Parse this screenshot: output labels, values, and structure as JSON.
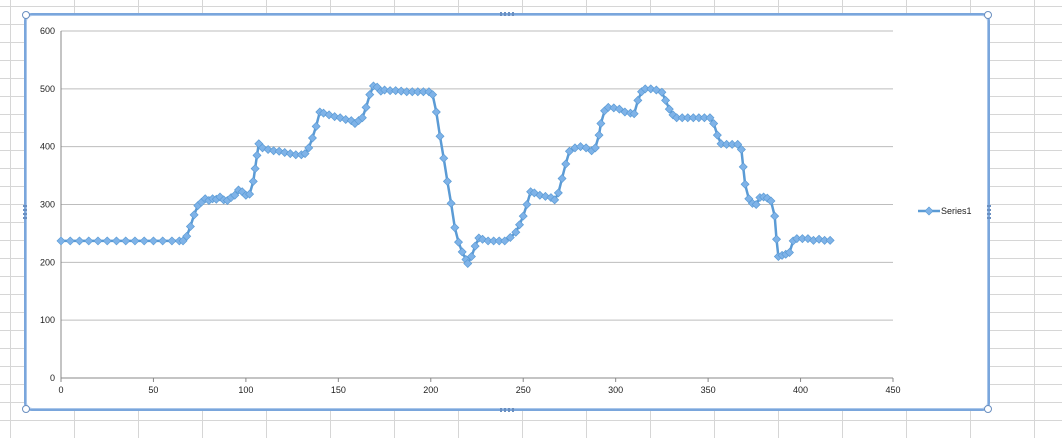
{
  "chart_data": {
    "type": "line",
    "title": "",
    "xlabel": "",
    "ylabel": "",
    "xlim": [
      0,
      450
    ],
    "ylim": [
      0,
      600
    ],
    "x_ticks": [
      "0",
      "50",
      "100",
      "150",
      "200",
      "250",
      "300",
      "350",
      "400",
      "450"
    ],
    "y_ticks": [
      "0",
      "100",
      "200",
      "300",
      "400",
      "500",
      "600"
    ],
    "grid": "horizontal major gridlines",
    "legend_position": "right",
    "colors": {
      "series": "#5b9bd5",
      "marker": "#7fb3e8",
      "grid": "#bdbdbd"
    },
    "marker": "diamond",
    "series": [
      {
        "name": "Series1",
        "points": [
          [
            0,
            237
          ],
          [
            5,
            237
          ],
          [
            10,
            237
          ],
          [
            15,
            237
          ],
          [
            20,
            237
          ],
          [
            25,
            237
          ],
          [
            30,
            237
          ],
          [
            35,
            237
          ],
          [
            40,
            237
          ],
          [
            45,
            237
          ],
          [
            50,
            237
          ],
          [
            55,
            237
          ],
          [
            60,
            237
          ],
          [
            64,
            237
          ],
          [
            66,
            237
          ],
          [
            68,
            245
          ],
          [
            70,
            262
          ],
          [
            72,
            282
          ],
          [
            74,
            298
          ],
          [
            76,
            304
          ],
          [
            78,
            310
          ],
          [
            80,
            307
          ],
          [
            82,
            310
          ],
          [
            84,
            309
          ],
          [
            86,
            313
          ],
          [
            88,
            308
          ],
          [
            90,
            307
          ],
          [
            92,
            312
          ],
          [
            94,
            316
          ],
          [
            96,
            325
          ],
          [
            98,
            322
          ],
          [
            100,
            316
          ],
          [
            102,
            318
          ],
          [
            104,
            340
          ],
          [
            105,
            362
          ],
          [
            106,
            385
          ],
          [
            107,
            405
          ],
          [
            109,
            398
          ],
          [
            112,
            395
          ],
          [
            115,
            393
          ],
          [
            118,
            392
          ],
          [
            121,
            390
          ],
          [
            124,
            388
          ],
          [
            127,
            386
          ],
          [
            130,
            386
          ],
          [
            132,
            388
          ],
          [
            134,
            398
          ],
          [
            136,
            415
          ],
          [
            138,
            435
          ],
          [
            140,
            460
          ],
          [
            142,
            458
          ],
          [
            145,
            455
          ],
          [
            148,
            452
          ],
          [
            151,
            450
          ],
          [
            154,
            447
          ],
          [
            157,
            445
          ],
          [
            159,
            440
          ],
          [
            161,
            445
          ],
          [
            163,
            450
          ],
          [
            165,
            468
          ],
          [
            167,
            490
          ],
          [
            169,
            505
          ],
          [
            171,
            503
          ],
          [
            173,
            496
          ],
          [
            175,
            498
          ],
          [
            178,
            497
          ],
          [
            181,
            497
          ],
          [
            184,
            496
          ],
          [
            187,
            495
          ],
          [
            190,
            495
          ],
          [
            193,
            495
          ],
          [
            196,
            495
          ],
          [
            199,
            495
          ],
          [
            201,
            490
          ],
          [
            203,
            460
          ],
          [
            205,
            418
          ],
          [
            207,
            380
          ],
          [
            209,
            340
          ],
          [
            211,
            302
          ],
          [
            213,
            260
          ],
          [
            215,
            235
          ],
          [
            217,
            218
          ],
          [
            219,
            205
          ],
          [
            220,
            198
          ],
          [
            222,
            210
          ],
          [
            224,
            228
          ],
          [
            226,
            242
          ],
          [
            228,
            240
          ],
          [
            231,
            237
          ],
          [
            234,
            237
          ],
          [
            237,
            237
          ],
          [
            240,
            237
          ],
          [
            243,
            243
          ],
          [
            246,
            252
          ],
          [
            248,
            265
          ],
          [
            250,
            280
          ],
          [
            252,
            300
          ],
          [
            254,
            322
          ],
          [
            256,
            320
          ],
          [
            259,
            316
          ],
          [
            262,
            314
          ],
          [
            265,
            312
          ],
          [
            267,
            308
          ],
          [
            269,
            320
          ],
          [
            271,
            345
          ],
          [
            273,
            370
          ],
          [
            275,
            392
          ],
          [
            278,
            398
          ],
          [
            281,
            400
          ],
          [
            284,
            398
          ],
          [
            287,
            393
          ],
          [
            289,
            398
          ],
          [
            291,
            420
          ],
          [
            292,
            440
          ],
          [
            294,
            462
          ],
          [
            296,
            468
          ],
          [
            299,
            467
          ],
          [
            302,
            465
          ],
          [
            305,
            460
          ],
          [
            308,
            458
          ],
          [
            310,
            457
          ],
          [
            312,
            480
          ],
          [
            314,
            495
          ],
          [
            316,
            500
          ],
          [
            319,
            500
          ],
          [
            322,
            498
          ],
          [
            325,
            494
          ],
          [
            327,
            480
          ],
          [
            329,
            465
          ],
          [
            331,
            455
          ],
          [
            333,
            450
          ],
          [
            336,
            450
          ],
          [
            339,
            450
          ],
          [
            342,
            450
          ],
          [
            345,
            450
          ],
          [
            348,
            450
          ],
          [
            351,
            450
          ],
          [
            353,
            440
          ],
          [
            355,
            420
          ],
          [
            357,
            405
          ],
          [
            360,
            404
          ],
          [
            363,
            404
          ],
          [
            366,
            404
          ],
          [
            368,
            395
          ],
          [
            369,
            365
          ],
          [
            370,
            335
          ],
          [
            372,
            310
          ],
          [
            374,
            302
          ],
          [
            376,
            300
          ],
          [
            378,
            312
          ],
          [
            380,
            313
          ],
          [
            382,
            311
          ],
          [
            384,
            306
          ],
          [
            386,
            280
          ],
          [
            387,
            240
          ],
          [
            388,
            210
          ],
          [
            390,
            212
          ],
          [
            392,
            214
          ],
          [
            394,
            217
          ],
          [
            396,
            237
          ],
          [
            398,
            241
          ],
          [
            401,
            241
          ],
          [
            404,
            241
          ],
          [
            407,
            238
          ],
          [
            410,
            240
          ],
          [
            413,
            238
          ],
          [
            416,
            238
          ]
        ]
      }
    ]
  }
}
